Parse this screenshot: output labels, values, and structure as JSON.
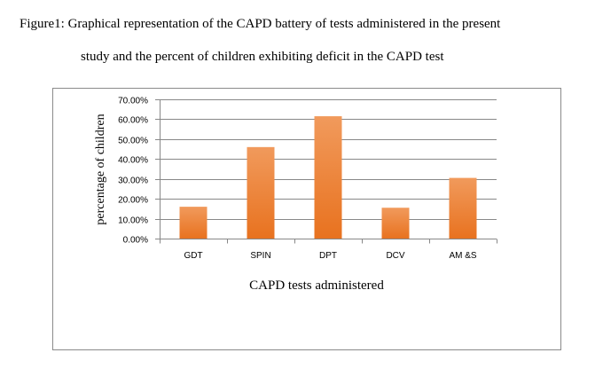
{
  "caption": {
    "line1": "Figure1: Graphical representation of the CAPD battery of tests administered in the present",
    "line2": "study and the percent of children exhibiting deficit in the CAPD test"
  },
  "colors": {
    "bar_top": "#f19a5c",
    "bar_bottom": "#e8721f",
    "grid": "#888888",
    "axis": "#888888"
  },
  "chart_data": {
    "type": "bar",
    "title": "",
    "xlabel": "CAPD tests administered",
    "ylabel": "percentage of children",
    "categories": [
      "GDT",
      "SPIN",
      "DPT",
      "DCV",
      "AM &S"
    ],
    "values": [
      0.16,
      0.46,
      0.615,
      0.155,
      0.305
    ],
    "ylim": [
      0,
      0.7
    ],
    "yticks": [
      0,
      0.1,
      0.2,
      0.3,
      0.4,
      0.5,
      0.6,
      0.7
    ],
    "ytick_labels": [
      "0.00%",
      "10.00%",
      "20.00%",
      "30.00%",
      "40.00%",
      "50.00%",
      "60.00%",
      "70.00%"
    ],
    "grid": true,
    "legend": "none"
  }
}
